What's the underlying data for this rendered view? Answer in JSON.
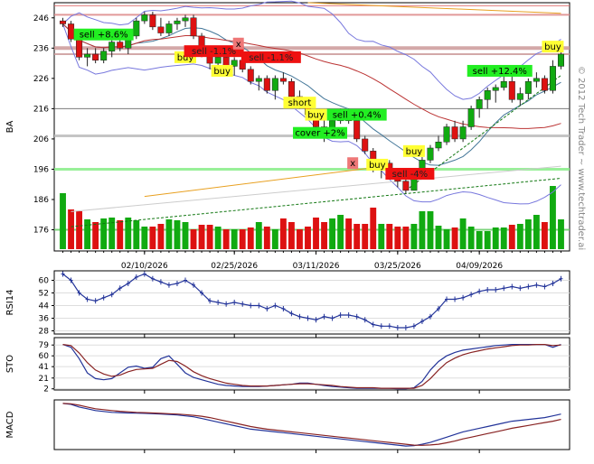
{
  "colors": {
    "up": "#11aa11",
    "down": "#dd1111",
    "band": "#7777dd",
    "ma_dark": "#bb3333",
    "ma_mid": "#447799",
    "trend_orange": "#e8a020",
    "trend_green": "#117711",
    "indicator_blue": "#223399",
    "indicator_red": "#882222",
    "label_green": "#22ee22",
    "label_red": "#ee1111",
    "label_yellow": "#ffff33",
    "label_pink": "#ee7777"
  },
  "chart_data": [
    {
      "type": "candlestick",
      "ticker": "BA",
      "ylabel": "BA",
      "ylim": [
        169,
        251
      ],
      "yticks": [
        176,
        186,
        196,
        206,
        216,
        226,
        236,
        246
      ],
      "xticks": [
        "02/10/2026",
        "02/25/2026",
        "03/11/2026",
        "03/25/2026",
        "04/09/2026"
      ],
      "xtick_index": [
        10,
        21,
        31,
        41,
        51
      ],
      "watermark": "© 2012 Tech Trader ~ www.techtrader.ai",
      "candles": [
        [
          245,
          246,
          243,
          244
        ],
        [
          244,
          245,
          238,
          239
        ],
        [
          239,
          240,
          232,
          233
        ],
        [
          233,
          236,
          230,
          234
        ],
        [
          234,
          236,
          231,
          232
        ],
        [
          232,
          236,
          231,
          235
        ],
        [
          235,
          240,
          233,
          238
        ],
        [
          238,
          240,
          235,
          236
        ],
        [
          236,
          241,
          234,
          240
        ],
        [
          240,
          246,
          239,
          245
        ],
        [
          245,
          248,
          244,
          247
        ],
        [
          247,
          248,
          242,
          243
        ],
        [
          243,
          246,
          240,
          241
        ],
        [
          241,
          245,
          240,
          244
        ],
        [
          244,
          246,
          242,
          245
        ],
        [
          245,
          247,
          243,
          246
        ],
        [
          246,
          247,
          239,
          240
        ],
        [
          240,
          241,
          233,
          234
        ],
        [
          234,
          235,
          229,
          231
        ],
        [
          231,
          234,
          229,
          233
        ],
        [
          233,
          236,
          229,
          230
        ],
        [
          230,
          233,
          227,
          232
        ],
        [
          232,
          233,
          228,
          229
        ],
        [
          229,
          230,
          224,
          225
        ],
        [
          225,
          227,
          222,
          226
        ],
        [
          226,
          227,
          221,
          222
        ],
        [
          222,
          227,
          219,
          226
        ],
        [
          226,
          228,
          224,
          225
        ],
        [
          225,
          226,
          219,
          220
        ],
        [
          220,
          222,
          216,
          217
        ],
        [
          217,
          219,
          213,
          214
        ],
        [
          214,
          215,
          209,
          210
        ],
        [
          210,
          213,
          205,
          208
        ],
        [
          208,
          213,
          207,
          212
        ],
        [
          212,
          216,
          211,
          215
        ],
        [
          215,
          216,
          211,
          212
        ],
        [
          212,
          213,
          205,
          206
        ],
        [
          206,
          207,
          201,
          202
        ],
        [
          202,
          203,
          195,
          197
        ],
        [
          197,
          199,
          193,
          198
        ],
        [
          198,
          199,
          193,
          194
        ],
        [
          194,
          195,
          190,
          192
        ],
        [
          192,
          193,
          188,
          189
        ],
        [
          189,
          194,
          189,
          194
        ],
        [
          194,
          200,
          193,
          199
        ],
        [
          199,
          204,
          198,
          203
        ],
        [
          203,
          207,
          202,
          205
        ],
        [
          205,
          211,
          204,
          210
        ],
        [
          210,
          212,
          205,
          206
        ],
        [
          206,
          212,
          205,
          210
        ],
        [
          210,
          217,
          209,
          216
        ],
        [
          216,
          220,
          213,
          219
        ],
        [
          219,
          223,
          216,
          222
        ],
        [
          222,
          224,
          218,
          223
        ],
        [
          223,
          228,
          222,
          225
        ],
        [
          225,
          227,
          218,
          219
        ],
        [
          219,
          223,
          217,
          221
        ],
        [
          221,
          226,
          219,
          225
        ],
        [
          225,
          228,
          223,
          226
        ],
        [
          226,
          227,
          221,
          222
        ],
        [
          222,
          232,
          221,
          230
        ],
        [
          230,
          236,
          229,
          234
        ]
      ],
      "volume": [
        0.62,
        0.44,
        0.42,
        0.33,
        0.3,
        0.34,
        0.35,
        0.32,
        0.35,
        0.32,
        0.25,
        0.25,
        0.28,
        0.33,
        0.32,
        0.3,
        0.22,
        0.27,
        0.27,
        0.25,
        0.22,
        0.22,
        0.22,
        0.24,
        0.3,
        0.25,
        0.22,
        0.34,
        0.3,
        0.22,
        0.25,
        0.35,
        0.3,
        0.34,
        0.38,
        0.34,
        0.28,
        0.28,
        0.46,
        0.28,
        0.28,
        0.25,
        0.25,
        0.28,
        0.42,
        0.42,
        0.26,
        0.22,
        0.24,
        0.34,
        0.25,
        0.2,
        0.2,
        0.24,
        0.24,
        0.27,
        0.28,
        0.33,
        0.38,
        0.3,
        0.7,
        0.33
      ],
      "volume_up": [
        true,
        false,
        false,
        true,
        false,
        true,
        true,
        false,
        true,
        true,
        true,
        false,
        false,
        true,
        true,
        true,
        false,
        false,
        false,
        true,
        false,
        true,
        false,
        false,
        true,
        false,
        true,
        false,
        false,
        false,
        false,
        false,
        false,
        true,
        true,
        false,
        false,
        false,
        false,
        true,
        false,
        false,
        false,
        true,
        true,
        true,
        true,
        true,
        false,
        true,
        true,
        true,
        true,
        true,
        true,
        false,
        true,
        true,
        true,
        false,
        true,
        true
      ],
      "horizontal_levels": [
        {
          "price": 247,
          "color": "#dd8888",
          "width": 2
        },
        {
          "price": 250,
          "color": "#dd6666",
          "width": 1
        },
        {
          "price": 236,
          "color": "#cc9999",
          "width": 4
        },
        {
          "price": 234,
          "color": "#cc9999",
          "width": 2
        },
        {
          "price": 207,
          "color": "#bbbbbb",
          "width": 3
        },
        {
          "price": 216,
          "color": "#666666",
          "width": 1
        },
        {
          "price": 196,
          "color": "#88ee88",
          "width": 3
        },
        {
          "price": 176,
          "color": "#66cc66",
          "width": 2
        }
      ],
      "annotations": [
        {
          "text": "sell +8.6%",
          "bg": "#22ee22",
          "i": 5,
          "price": 240.5
        },
        {
          "text": "buy",
          "bg": "#ffff33",
          "i": 15,
          "price": 233
        },
        {
          "text": "sell -1.1%",
          "bg": "#ee1111",
          "i": 18.5,
          "price": 235
        },
        {
          "text": "x",
          "bg": "#ee7777",
          "i": 21.5,
          "price": 237.5
        },
        {
          "text": "buy",
          "bg": "#ffff33",
          "i": 19.5,
          "price": 228.5
        },
        {
          "text": "sell -1.1%",
          "bg": "#ee1111",
          "i": 25.5,
          "price": 233
        },
        {
          "text": "short",
          "bg": "#ffff33",
          "i": 29,
          "price": 218
        },
        {
          "text": "buy",
          "bg": "#ffff33",
          "i": 31,
          "price": 214
        },
        {
          "text": "sell +0.4%",
          "bg": "#22ee22",
          "i": 36,
          "price": 214
        },
        {
          "text": "cover +2%",
          "bg": "#22ee22",
          "i": 31.5,
          "price": 208
        },
        {
          "text": "x",
          "bg": "#ee7777",
          "i": 35.5,
          "price": 198
        },
        {
          "text": "buy",
          "bg": "#ffff33",
          "i": 38.5,
          "price": 197.5
        },
        {
          "text": "sell -4%",
          "bg": "#ee1111",
          "i": 42.5,
          "price": 194.5
        },
        {
          "text": "buy",
          "bg": "#ffff33",
          "i": 43,
          "price": 202
        },
        {
          "text": "sell +12.4%",
          "bg": "#22ee22",
          "i": 53.5,
          "price": 228.5
        },
        {
          "text": "buy",
          "bg": "#ffff33",
          "i": 60,
          "price": 236.5
        }
      ]
    },
    {
      "type": "line",
      "ylabel": "RSI14",
      "ylim": [
        26,
        66
      ],
      "yticks": [
        28,
        36,
        44,
        52,
        60
      ],
      "series": [
        {
          "values": [
            64,
            60,
            52,
            48,
            47,
            49,
            51,
            55,
            58,
            62,
            64,
            61,
            59,
            57,
            58,
            60,
            57,
            52,
            47,
            46,
            45,
            46,
            45,
            44,
            44,
            42,
            44,
            42,
            39,
            37,
            36,
            35,
            37,
            36,
            38,
            38,
            37,
            35,
            32,
            31,
            31,
            30,
            30,
            31,
            34,
            37,
            42,
            48,
            48,
            49,
            51,
            53,
            54,
            54,
            55,
            56,
            55,
            56,
            57,
            56,
            58,
            61
          ]
        }
      ]
    },
    {
      "type": "line",
      "ylabel": "STO",
      "ylim": [
        0,
        92
      ],
      "yticks": [
        2,
        21,
        41,
        60,
        79
      ],
      "series": [
        {
          "color": "indicator_blue",
          "values": [
            80,
            75,
            55,
            30,
            20,
            18,
            20,
            30,
            40,
            42,
            38,
            40,
            55,
            60,
            45,
            30,
            22,
            18,
            14,
            10,
            8,
            7,
            6,
            6,
            6,
            7,
            8,
            9,
            10,
            12,
            12,
            10,
            8,
            6,
            5,
            4,
            3,
            3,
            3,
            3,
            3,
            2,
            2,
            4,
            15,
            35,
            50,
            60,
            66,
            70,
            72,
            74,
            76,
            78,
            79,
            80,
            80,
            80,
            80,
            80,
            75,
            80
          ]
        },
        {
          "color": "indicator_red",
          "values": [
            80,
            78,
            65,
            48,
            35,
            28,
            24,
            26,
            32,
            36,
            37,
            38,
            45,
            52,
            50,
            42,
            32,
            25,
            20,
            16,
            12,
            10,
            8,
            7,
            7,
            7,
            8,
            9,
            10,
            11,
            11,
            10,
            9,
            8,
            6,
            5,
            4,
            4,
            4,
            3,
            3,
            3,
            3,
            3,
            8,
            20,
            35,
            48,
            56,
            62,
            66,
            69,
            72,
            74,
            76,
            78,
            79,
            79,
            80,
            80,
            78,
            79
          ]
        }
      ]
    },
    {
      "type": "line",
      "ylabel": "MACD",
      "ylim": [
        -16,
        12
      ],
      "yticks": [],
      "series": [
        {
          "color": "indicator_blue",
          "values": [
            10,
            9.5,
            8,
            7,
            6,
            5.5,
            5,
            4.8,
            4.6,
            4.5,
            4.4,
            4.2,
            4,
            3.8,
            3.5,
            3,
            2.5,
            1.5,
            0.5,
            -0.5,
            -1.5,
            -2.5,
            -3.5,
            -4.5,
            -5,
            -5.5,
            -6,
            -6.5,
            -7,
            -7.5,
            -8,
            -8.5,
            -9,
            -9.5,
            -10,
            -10.5,
            -11,
            -11.5,
            -12,
            -12.5,
            -13,
            -13.5,
            -14,
            -13.8,
            -13,
            -12,
            -10.5,
            -9,
            -7.5,
            -6,
            -5,
            -4,
            -3,
            -2,
            -1,
            0,
            0.5,
            1,
            1.5,
            2,
            3,
            4
          ]
        },
        {
          "color": "indicator_red",
          "values": [
            10,
            9.8,
            9,
            8,
            7,
            6.5,
            6,
            5.6,
            5.3,
            5,
            4.8,
            4.6,
            4.4,
            4.2,
            4,
            3.7,
            3.3,
            2.8,
            2,
            1,
            0,
            -1,
            -2,
            -3,
            -3.8,
            -4.5,
            -5,
            -5.5,
            -6,
            -6.5,
            -7,
            -7.5,
            -8,
            -8.5,
            -9,
            -9.5,
            -10,
            -10.5,
            -11,
            -11.5,
            -12,
            -12.5,
            -13,
            -13.5,
            -13.6,
            -13.4,
            -13,
            -12.2,
            -11.2,
            -10,
            -9,
            -8,
            -7,
            -6,
            -5,
            -4,
            -3.2,
            -2.4,
            -1.6,
            -0.8,
            0,
            1
          ]
        }
      ]
    }
  ]
}
